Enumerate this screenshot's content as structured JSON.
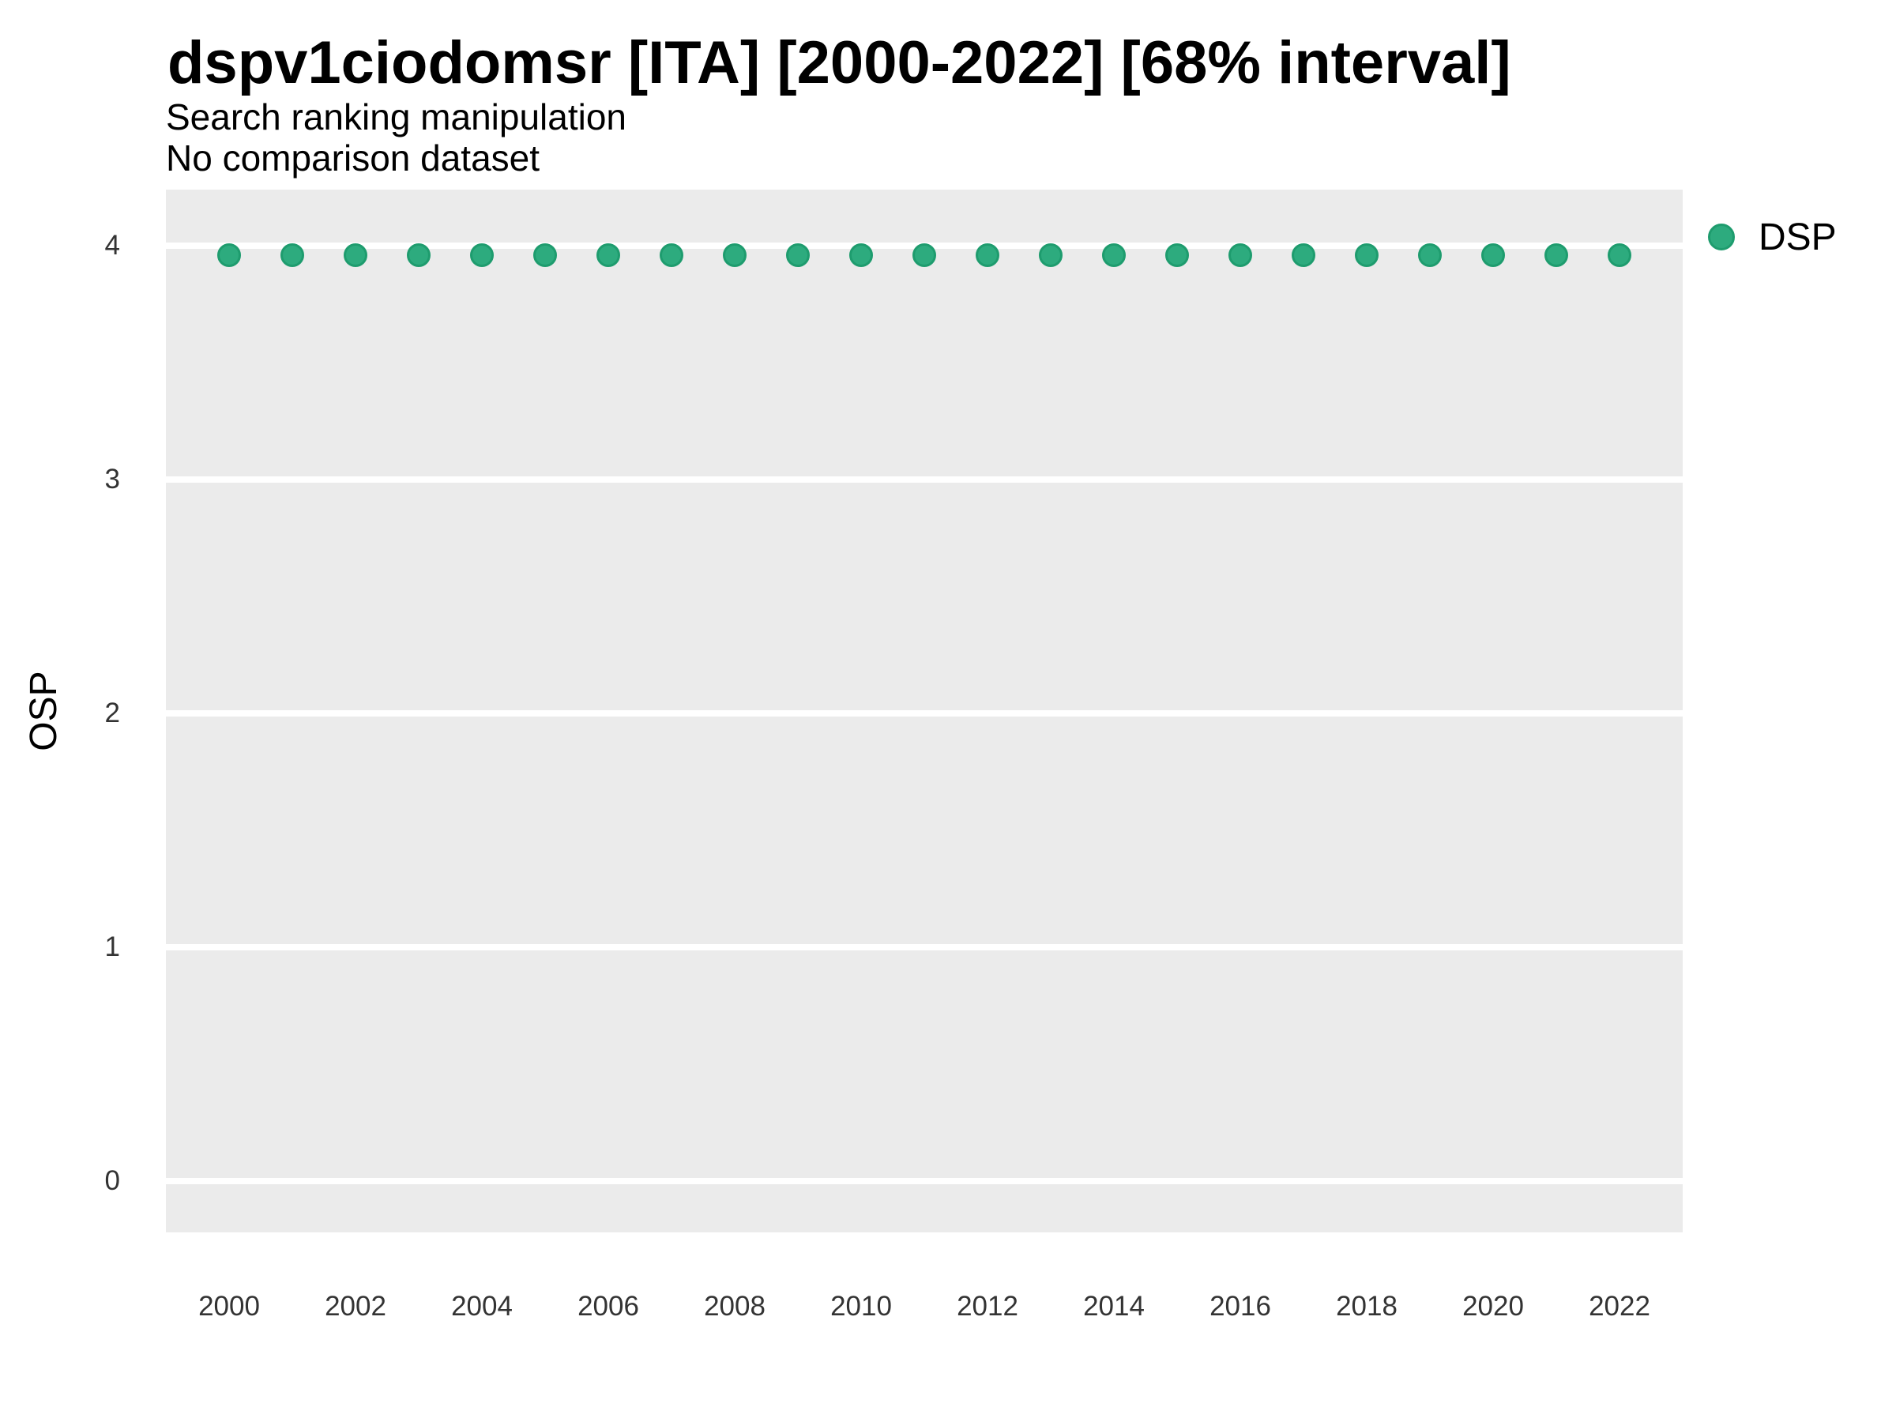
{
  "header": {
    "title": "dspv1ciodomsr [ITA] [2000-2022] [68% interval]",
    "subtitle": "Search ranking manipulation",
    "note": "No comparison dataset"
  },
  "legend": {
    "label": "DSP"
  },
  "axes": {
    "y_label": "OSP"
  },
  "colors": {
    "panel_bg": "#EBEBEB",
    "grid": "#FFFFFF",
    "point_fill": "#2DAB7E",
    "point_stroke": "#1E9C6E",
    "tick_text": "#333333"
  },
  "chart_data": {
    "type": "scatter",
    "title": "dspv1ciodomsr [ITA] [2000-2022] [68% interval]",
    "subtitle": "Search ranking manipulation",
    "note": "No comparison dataset",
    "xlabel": "",
    "ylabel": "OSP",
    "xlim": [
      1999,
      2023
    ],
    "ylim": [
      -0.22,
      4.24
    ],
    "xticks": [
      2000,
      2002,
      2004,
      2006,
      2008,
      2010,
      2012,
      2014,
      2016,
      2018,
      2020,
      2022
    ],
    "yticks": [
      0,
      1,
      2,
      3,
      4
    ],
    "grid": "horizontal-major-only",
    "legend_position": "top-right",
    "series": [
      {
        "name": "DSP",
        "x": [
          2000,
          2001,
          2002,
          2003,
          2004,
          2005,
          2006,
          2007,
          2008,
          2009,
          2010,
          2011,
          2012,
          2013,
          2014,
          2015,
          2016,
          2017,
          2018,
          2019,
          2020,
          2021,
          2022
        ],
        "y": [
          3.96,
          3.96,
          3.96,
          3.96,
          3.96,
          3.96,
          3.96,
          3.96,
          3.96,
          3.96,
          3.96,
          3.96,
          3.96,
          3.96,
          3.96,
          3.96,
          3.96,
          3.96,
          3.96,
          3.96,
          3.96,
          3.96,
          3.96
        ]
      }
    ]
  }
}
